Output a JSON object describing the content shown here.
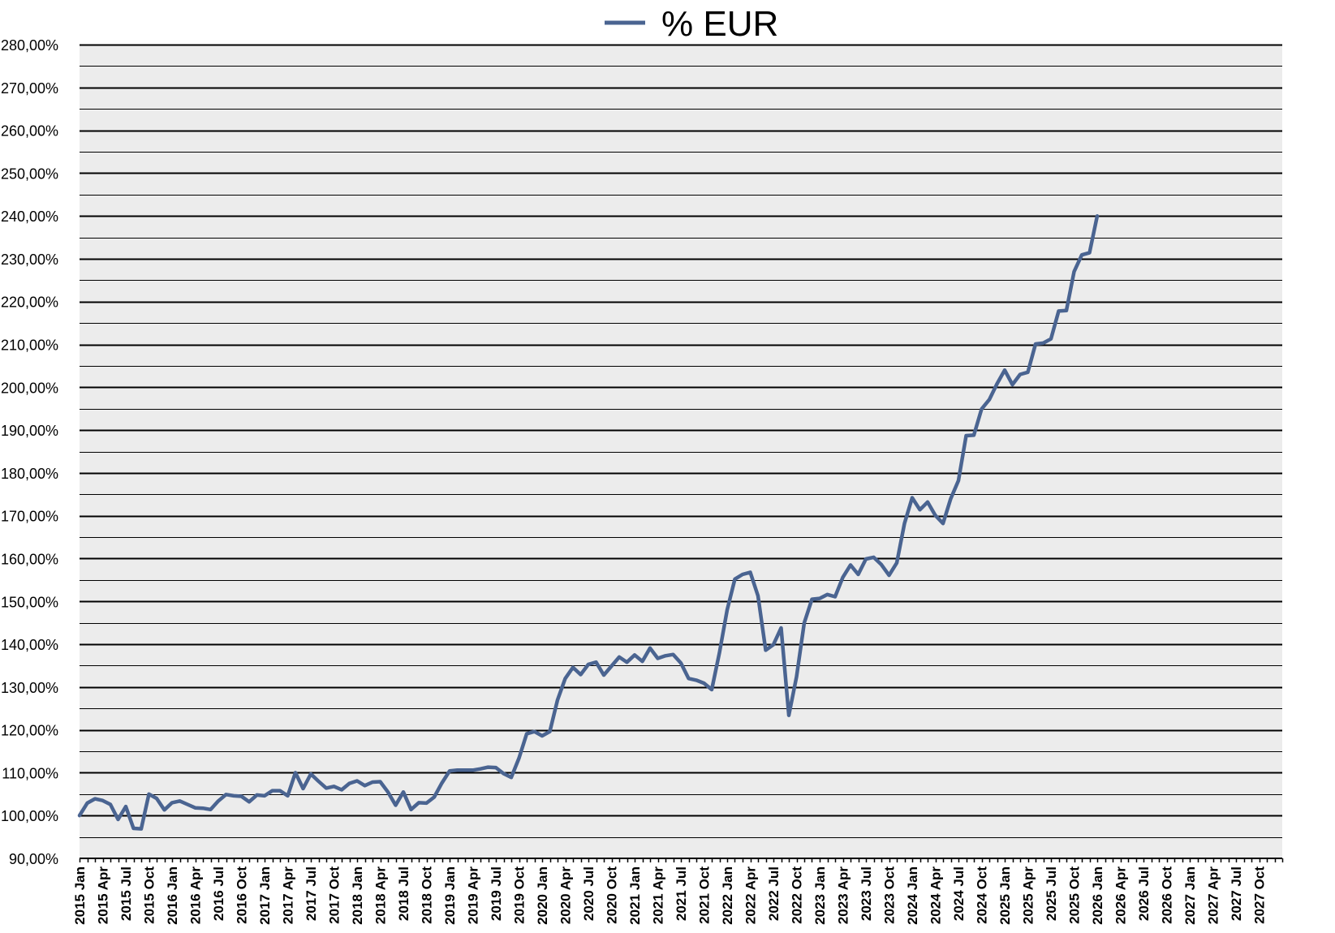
{
  "chart_data": {
    "type": "line",
    "legend": {
      "position": "top",
      "entries": [
        {
          "name": "% EUR",
          "color": "#4a6491"
        }
      ]
    },
    "grid": true,
    "background_color": "#ececec",
    "line_color": "#4a6491",
    "ylim": [
      90,
      280
    ],
    "yticks": [
      "90,00%",
      "100,00%",
      "110,00%",
      "120,00%",
      "130,00%",
      "140,00%",
      "150,00%",
      "160,00%",
      "170,00%",
      "180,00%",
      "190,00%",
      "200,00%",
      "210,00%",
      "220,00%",
      "230,00%",
      "240,00%",
      "250,00%",
      "260,00%",
      "270,00%",
      "280,00%"
    ],
    "ytick_values": [
      90,
      100,
      110,
      120,
      130,
      140,
      150,
      160,
      170,
      180,
      190,
      200,
      210,
      220,
      230,
      240,
      250,
      260,
      270,
      280
    ],
    "x_axis_range": [
      "2015 Jan",
      "2027 Dec"
    ],
    "xticks": [
      "2015 Jan",
      "2015 Apr",
      "2015 Jul",
      "2015 Oct",
      "2016 Jan",
      "2016 Apr",
      "2016 Jul",
      "2016 Oct",
      "2017 Jan",
      "2017 Apr",
      "2017 Jul",
      "2017 Oct",
      "2018 Jan",
      "2018 Apr",
      "2018 Jul",
      "2018 Oct",
      "2019 Jan",
      "2019 Apr",
      "2019 Jul",
      "2019 Oct",
      "2020 Jan",
      "2020 Apr",
      "2020 Jul",
      "2020 Oct",
      "2021 Jan",
      "2021 Apr",
      "2021 Jul",
      "2021 Oct",
      "2022 Jan",
      "2022 Apr",
      "2022 Jul",
      "2022 Oct",
      "2023 Jan",
      "2023 Apr",
      "2023 Jul",
      "2023 Oct",
      "2024 Jan",
      "2024 Apr",
      "2024 Jul",
      "2024 Oct",
      "2025 Jan",
      "2025 Apr",
      "2025 Jul",
      "2025 Oct",
      "2026 Jan",
      "2026 Apr",
      "2026 Jul",
      "2026 Oct",
      "2027 Jan",
      "2027 Apr",
      "2027 Jul",
      "2027 Oct"
    ],
    "series": [
      {
        "name": "% EUR",
        "x_start": "2015 Jan",
        "x_step": "month",
        "values": [
          100.0,
          102.9,
          103.9,
          103.5,
          102.6,
          99.1,
          102.1,
          97.0,
          96.9,
          105.0,
          104.0,
          101.3,
          103.0,
          103.4,
          102.6,
          101.8,
          101.7,
          101.4,
          103.4,
          104.9,
          104.6,
          104.5,
          103.2,
          104.8,
          104.6,
          105.8,
          105.8,
          104.6,
          110.0,
          106.3,
          109.7,
          108.0,
          106.4,
          106.8,
          106.0,
          107.5,
          108.1,
          107.0,
          107.8,
          107.9,
          105.5,
          102.4,
          105.5,
          101.4,
          103.0,
          102.9,
          104.3,
          107.6,
          110.4,
          110.6,
          110.6,
          110.6,
          110.9,
          111.3,
          111.2,
          109.8,
          108.9,
          113.4,
          119.1,
          119.6,
          118.6,
          119.6,
          127.0,
          132.0,
          134.6,
          132.9,
          135.3,
          135.8,
          132.8,
          134.9,
          137.0,
          135.8,
          137.5,
          136.0,
          139.1,
          136.7,
          137.3,
          137.6,
          135.6,
          132.0,
          131.6,
          130.9,
          129.4,
          138.0,
          148.0,
          155.2,
          156.3,
          156.8,
          151.3,
          138.6,
          139.9,
          143.8,
          123.4,
          132.4,
          145.0,
          150.5,
          150.7,
          151.6,
          151.1,
          155.6,
          158.5,
          156.3,
          159.9,
          160.3,
          158.6,
          156.1,
          159.0,
          168.2,
          174.2,
          171.4,
          173.2,
          170.1,
          168.2,
          174.0,
          178.2,
          188.7,
          188.8,
          194.9,
          197.1,
          200.8,
          204.0,
          200.6,
          203.0,
          203.5,
          210.1,
          210.3,
          211.3,
          217.8,
          217.9,
          227.0,
          230.9,
          231.4,
          240.0
        ]
      }
    ]
  }
}
